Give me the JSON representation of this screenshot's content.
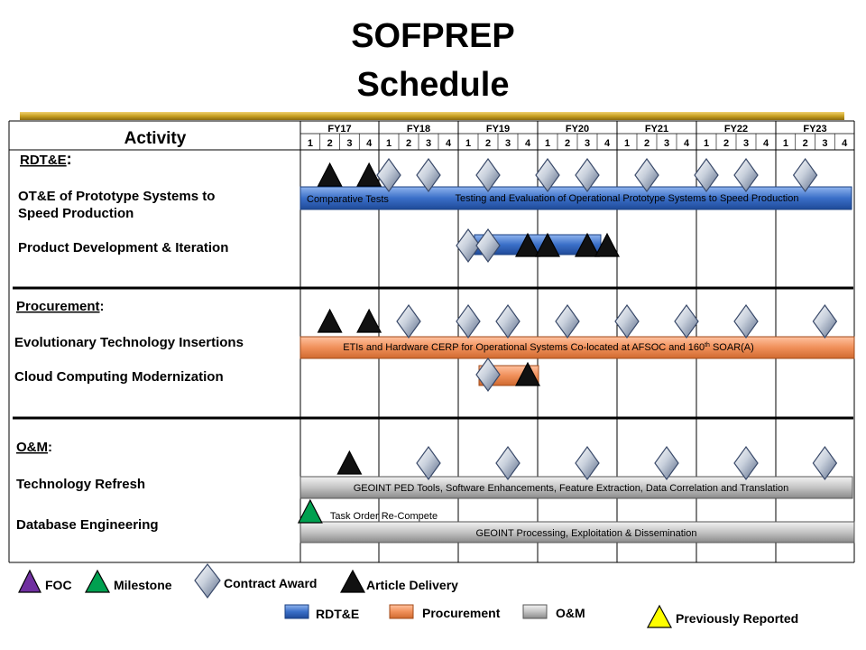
{
  "title_line1": "SOFPREP",
  "title_line2": "Schedule",
  "colors": {
    "gold": "#c8a020",
    "rdte": "#3a6fc8",
    "proc": "#f0905a",
    "om": "#b8b8b8",
    "yellow": "#ffff00",
    "purple": "#7030a0",
    "green": "#00a050"
  },
  "header": {
    "activity": "Activity",
    "fiscal_years": [
      "FY17",
      "FY18",
      "FY19",
      "FY20",
      "FY21",
      "FY22",
      "FY23"
    ],
    "quarters": [
      "1",
      "2",
      "3",
      "4"
    ]
  },
  "sections": [
    {
      "title": "RDT&E",
      "suffix": ":",
      "items": [
        {
          "label_lines": [
            "OT&E of Prototype Systems to",
            "Speed Production"
          ]
        },
        {
          "label_lines": [
            "Product Development & Iteration"
          ]
        }
      ]
    },
    {
      "title": "Procurement",
      "suffix": ":",
      "items": [
        {
          "label_lines": [
            "Evolutionary Technology Insertions"
          ]
        },
        {
          "label_lines": [
            "Cloud Computing Modernization"
          ]
        }
      ]
    },
    {
      "title": "O&M",
      "suffix": ":",
      "items": [
        {
          "label_lines": [
            "Technology Refresh"
          ]
        },
        {
          "label_lines": [
            "Database Engineering"
          ]
        }
      ]
    }
  ],
  "chart_data": {
    "type": "gantt",
    "bars": [
      {
        "category": "RDT&E",
        "row": "OT&E of Prototype Systems to Speed Production",
        "start": "FY17 Q1",
        "end": "FY23 Q4",
        "labels": [
          "Comparative Tests",
          "Testing and Evaluation of Operational Prototype Systems to Speed Production"
        ]
      },
      {
        "category": "RDT&E",
        "row": "Product Development & Iteration",
        "start": "FY19 Q1",
        "end": "FY20 Q4",
        "labels": []
      },
      {
        "category": "Procurement",
        "row": "Evolutionary Technology Insertions",
        "start": "FY17 Q1",
        "end": "FY23 Q4",
        "labels": [
          "ETIs and Hardware CERP for Operational Systems Co-located at AFSOC and 160th SOAR(A)"
        ]
      },
      {
        "category": "Procurement",
        "row": "Cloud Computing Modernization",
        "start": "FY19 Q2",
        "end": "FY19 Q4",
        "labels": []
      },
      {
        "category": "O&M",
        "row": "Technology Refresh",
        "start": "FY17 Q1",
        "end": "FY23 Q4",
        "labels": [
          "GEOINT PED Tools, Software Enhancements, Feature Extraction, Data Correlation and Translation"
        ]
      },
      {
        "category": "O&M",
        "row": "Database Engineering",
        "start": "FY17 Q1",
        "end": "FY23 Q4",
        "labels": [
          "GEOINT Processing, Exploitation & Dissemination"
        ]
      }
    ],
    "milestones": [
      {
        "section": "RDT&E",
        "type": "article_delivery",
        "time": "FY17 Q2"
      },
      {
        "section": "RDT&E",
        "type": "article_delivery",
        "time": "FY17 Q4"
      },
      {
        "section": "RDT&E",
        "type": "contract_award",
        "time": "FY18 Q1"
      },
      {
        "section": "RDT&E",
        "type": "contract_award",
        "time": "FY18 Q3"
      },
      {
        "section": "RDT&E",
        "type": "contract_award",
        "time": "FY19 Q2"
      },
      {
        "section": "RDT&E",
        "type": "contract_award",
        "time": "FY20 Q1"
      },
      {
        "section": "RDT&E",
        "type": "contract_award",
        "time": "FY20 Q3"
      },
      {
        "section": "RDT&E",
        "type": "contract_award",
        "time": "FY21 Q2"
      },
      {
        "section": "RDT&E",
        "type": "contract_award",
        "time": "FY22 Q1"
      },
      {
        "section": "RDT&E",
        "type": "contract_award",
        "time": "FY22 Q3"
      },
      {
        "section": "RDT&E",
        "type": "contract_award",
        "time": "FY23 Q2"
      },
      {
        "section": "RDT&E",
        "row": "Product Development & Iteration",
        "type": "contract_award",
        "time": "FY19 Q1"
      },
      {
        "section": "RDT&E",
        "row": "Product Development & Iteration",
        "type": "contract_award",
        "time": "FY19 Q2"
      },
      {
        "section": "RDT&E",
        "row": "Product Development & Iteration",
        "type": "article_delivery",
        "time": "FY19 Q4"
      },
      {
        "section": "RDT&E",
        "row": "Product Development & Iteration",
        "type": "article_delivery",
        "time": "FY20 Q1"
      },
      {
        "section": "RDT&E",
        "row": "Product Development & Iteration",
        "type": "article_delivery",
        "time": "FY20 Q3"
      },
      {
        "section": "RDT&E",
        "row": "Product Development & Iteration",
        "type": "article_delivery",
        "time": "FY20 Q4"
      },
      {
        "section": "Procurement",
        "type": "article_delivery",
        "time": "FY17 Q2"
      },
      {
        "section": "Procurement",
        "type": "article_delivery",
        "time": "FY17 Q4"
      },
      {
        "section": "Procurement",
        "type": "contract_award",
        "time": "FY18 Q2"
      },
      {
        "section": "Procurement",
        "type": "contract_award",
        "time": "FY19 Q1"
      },
      {
        "section": "Procurement",
        "type": "contract_award",
        "time": "FY19 Q3"
      },
      {
        "section": "Procurement",
        "type": "contract_award",
        "time": "FY20 Q2"
      },
      {
        "section": "Procurement",
        "type": "contract_award",
        "time": "FY21 Q1"
      },
      {
        "section": "Procurement",
        "type": "contract_award",
        "time": "FY21 Q4"
      },
      {
        "section": "Procurement",
        "type": "contract_award",
        "time": "FY22 Q3"
      },
      {
        "section": "Procurement",
        "type": "contract_award",
        "time": "FY23 Q3"
      },
      {
        "section": "Procurement",
        "row": "Cloud Computing Modernization",
        "type": "contract_award",
        "time": "FY19 Q2"
      },
      {
        "section": "Procurement",
        "row": "Cloud Computing Modernization",
        "type": "article_delivery",
        "time": "FY19 Q4"
      },
      {
        "section": "O&M",
        "type": "article_delivery",
        "time": "FY17 Q3"
      },
      {
        "section": "O&M",
        "type": "contract_award",
        "time": "FY18 Q3"
      },
      {
        "section": "O&M",
        "type": "contract_award",
        "time": "FY19 Q3"
      },
      {
        "section": "O&M",
        "type": "contract_award",
        "time": "FY20 Q3"
      },
      {
        "section": "O&M",
        "type": "contract_award",
        "time": "FY21 Q3"
      },
      {
        "section": "O&M",
        "type": "contract_award",
        "time": "FY22 Q3"
      },
      {
        "section": "O&M",
        "type": "contract_award",
        "time": "FY23 Q3"
      },
      {
        "section": "O&M",
        "row": "Database Engineering",
        "type": "milestone",
        "time": "FY17 Q1",
        "label": "Task Order Re-Compete"
      }
    ]
  },
  "legend": {
    "foc": "FOC",
    "milestone": "Milestone",
    "contract_award": "Contract Award",
    "article_delivery": "Article Delivery",
    "rdte": "RDT&E",
    "procurement": "Procurement",
    "om": "O&M",
    "previously_reported": "Previously Reported"
  }
}
